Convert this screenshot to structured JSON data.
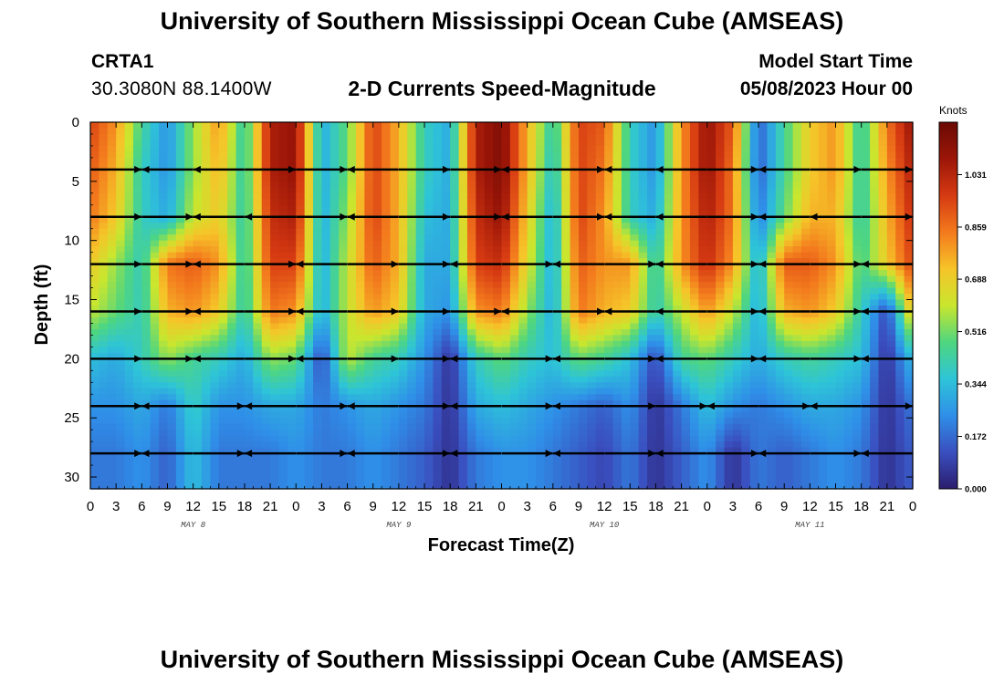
{
  "header": {
    "title": "University of Southern Mississippi Ocean Cube (AMSEAS)",
    "station": "CRTA1",
    "coordinates": "30.3080N  88.1400W",
    "subtitle": "2-D Currents Speed-Magnitude",
    "model_start_label": "Model Start Time",
    "model_start_value": "05/08/2023 Hour 00"
  },
  "footer": {
    "title": "University of Southern Mississippi Ocean Cube (AMSEAS)"
  },
  "chart_data": {
    "type": "heatmap",
    "title": "2-D Currents Speed-Magnitude",
    "xlabel": "Forecast Time(Z)",
    "ylabel": "Depth (ft)",
    "xlim": [
      0,
      96
    ],
    "ylim": [
      31,
      0
    ],
    "x_ticks": [
      0,
      3,
      6,
      9,
      12,
      15,
      18,
      21,
      24,
      27,
      30,
      33,
      36,
      39,
      42,
      45,
      48,
      51,
      54,
      57,
      60,
      63,
      66,
      69,
      72,
      75,
      78,
      81,
      84,
      87,
      90,
      93,
      96
    ],
    "x_tick_labels": [
      "0",
      "3",
      "6",
      "9",
      "12",
      "15",
      "18",
      "21",
      "0",
      "3",
      "6",
      "9",
      "12",
      "15",
      "18",
      "21",
      "0",
      "3",
      "6",
      "9",
      "12",
      "15",
      "18",
      "21",
      "0",
      "3",
      "6",
      "9",
      "12",
      "15",
      "18",
      "21",
      "0"
    ],
    "day_labels": [
      {
        "text": "MAY 8",
        "hour": 12
      },
      {
        "text": "MAY 9",
        "hour": 36
      },
      {
        "text": "MAY 10",
        "hour": 60
      },
      {
        "text": "MAY 11",
        "hour": 84
      }
    ],
    "y_ticks": [
      0,
      5,
      10,
      15,
      20,
      25,
      30
    ],
    "colorbar": {
      "unit": "Knots",
      "range": [
        0,
        1.203
      ],
      "tick_labels": [
        "0.000",
        "0.172",
        "0.344",
        "0.516",
        "0.688",
        "0.859",
        "1.031"
      ],
      "tick_values": [
        0,
        0.172,
        0.344,
        0.516,
        0.688,
        0.859,
        1.031
      ],
      "colors": [
        "#2b1d6e",
        "#3a4fbf",
        "#2f8fe8",
        "#2ec4d8",
        "#4fd67f",
        "#c9e62e",
        "#f6c429",
        "#f37a1d",
        "#d63a12",
        "#9c1608",
        "#6a0a04"
      ]
    },
    "time_hours": [
      0,
      3,
      6,
      9,
      12,
      15,
      18,
      21,
      24,
      27,
      30,
      33,
      36,
      39,
      42,
      45,
      48,
      51,
      54,
      57,
      60,
      63,
      66,
      69,
      72,
      75,
      78,
      81,
      84,
      87,
      90,
      93,
      96
    ],
    "depths_ft": [
      0,
      4,
      8,
      12,
      16,
      20,
      24,
      28,
      31
    ],
    "speed_knots": [
      [
        0.95,
        0.8,
        0.45,
        0.25,
        0.55,
        0.8,
        0.4,
        1.05,
        1.1,
        0.3,
        0.5,
        0.95,
        0.75,
        0.4,
        0.3,
        1.05,
        1.15,
        0.75,
        0.4,
        0.95,
        0.9,
        0.4,
        0.25,
        0.8,
        1.1,
        0.9,
        0.15,
        0.45,
        0.7,
        0.8,
        0.4,
        0.85,
        1.1
      ],
      [
        0.9,
        0.75,
        0.4,
        0.25,
        0.55,
        0.75,
        0.4,
        1.05,
        1.1,
        0.3,
        0.5,
        0.95,
        0.75,
        0.4,
        0.3,
        1.05,
        1.15,
        0.75,
        0.35,
        0.95,
        0.85,
        0.4,
        0.25,
        0.8,
        1.1,
        0.85,
        0.15,
        0.45,
        0.7,
        0.8,
        0.4,
        0.8,
        1.05
      ],
      [
        0.85,
        0.7,
        0.4,
        0.3,
        0.6,
        0.7,
        0.4,
        1.0,
        1.05,
        0.3,
        0.55,
        0.95,
        0.75,
        0.35,
        0.3,
        1.0,
        1.1,
        0.7,
        0.3,
        0.95,
        0.8,
        0.4,
        0.3,
        0.8,
        1.05,
        0.85,
        0.2,
        0.5,
        0.75,
        0.75,
        0.4,
        0.75,
        1.0
      ],
      [
        0.7,
        0.55,
        0.4,
        0.85,
        0.9,
        0.8,
        0.4,
        0.95,
        0.95,
        0.3,
        0.6,
        0.9,
        0.75,
        0.3,
        0.3,
        0.95,
        1.0,
        0.65,
        0.3,
        0.9,
        0.8,
        0.8,
        0.4,
        0.8,
        1.0,
        0.8,
        0.3,
        0.9,
        0.9,
        0.8,
        0.45,
        0.7,
        0.95
      ],
      [
        0.6,
        0.5,
        0.4,
        0.75,
        0.8,
        0.7,
        0.4,
        0.85,
        0.8,
        0.3,
        0.6,
        0.8,
        0.7,
        0.3,
        0.25,
        0.8,
        0.85,
        0.55,
        0.3,
        0.85,
        0.75,
        0.7,
        0.4,
        0.6,
        0.8,
        0.6,
        0.3,
        0.75,
        0.8,
        0.7,
        0.4,
        0.1,
        0.75
      ],
      [
        0.35,
        0.3,
        0.4,
        0.55,
        0.45,
        0.4,
        0.3,
        0.55,
        0.5,
        0.1,
        0.6,
        0.45,
        0.4,
        0.25,
        0.05,
        0.4,
        0.5,
        0.4,
        0.35,
        0.5,
        0.45,
        0.35,
        0.1,
        0.45,
        0.5,
        0.4,
        0.3,
        0.4,
        0.45,
        0.4,
        0.35,
        0.05,
        0.35
      ],
      [
        0.25,
        0.25,
        0.3,
        0.2,
        0.4,
        0.25,
        0.25,
        0.3,
        0.3,
        0.2,
        0.25,
        0.3,
        0.25,
        0.2,
        0.05,
        0.3,
        0.35,
        0.3,
        0.25,
        0.2,
        0.15,
        0.25,
        0.05,
        0.2,
        0.35,
        0.25,
        0.2,
        0.25,
        0.3,
        0.3,
        0.25,
        0.05,
        0.2
      ],
      [
        0.2,
        0.2,
        0.25,
        0.15,
        0.35,
        0.2,
        0.2,
        0.2,
        0.25,
        0.2,
        0.2,
        0.25,
        0.2,
        0.15,
        0.05,
        0.2,
        0.25,
        0.25,
        0.2,
        0.15,
        0.1,
        0.2,
        0.05,
        0.15,
        0.25,
        0.05,
        0.2,
        0.15,
        0.2,
        0.25,
        0.2,
        0.05,
        0.15
      ],
      [
        0.2,
        0.2,
        0.25,
        0.15,
        0.35,
        0.2,
        0.2,
        0.2,
        0.25,
        0.2,
        0.2,
        0.25,
        0.2,
        0.15,
        0.05,
        0.2,
        0.25,
        0.25,
        0.2,
        0.15,
        0.1,
        0.2,
        0.05,
        0.15,
        0.25,
        0.05,
        0.2,
        0.15,
        0.2,
        0.25,
        0.2,
        0.05,
        0.15
      ]
    ],
    "vectors": {
      "depths_ft": [
        4,
        8,
        12,
        16,
        20,
        24,
        28
      ],
      "hours": [
        3,
        9,
        15,
        21,
        27,
        33,
        39,
        45,
        51,
        57,
        63,
        69,
        75,
        81,
        87,
        93
      ],
      "direction_sign": [
        [
          1,
          -1,
          -1,
          1,
          1,
          -1,
          1,
          1,
          -1,
          1,
          -1,
          -1,
          1,
          -1,
          1,
          1
        ],
        [
          1,
          1,
          -1,
          -1,
          1,
          -1,
          1,
          1,
          -1,
          1,
          -1,
          -1,
          1,
          -1,
          -1,
          1
        ],
        [
          1,
          1,
          -1,
          1,
          -1,
          1,
          1,
          -1,
          1,
          -1,
          1,
          -1,
          1,
          -1,
          1,
          -1
        ],
        [
          1,
          1,
          -1,
          1,
          -1,
          1,
          1,
          1,
          -1,
          1,
          -1,
          -1,
          1,
          -1,
          1,
          -1
        ],
        [
          1,
          1,
          -1,
          1,
          -1,
          1,
          1,
          -1,
          1,
          -1,
          1,
          -1,
          1,
          -1,
          1,
          -1
        ],
        [
          1,
          -1,
          1,
          -1,
          1,
          -1,
          1,
          -1,
          1,
          -1,
          1,
          1,
          -1,
          1,
          -1,
          1
        ],
        [
          1,
          -1,
          1,
          -1,
          1,
          -1,
          1,
          -1,
          1,
          -1,
          1,
          -1,
          1,
          -1,
          1,
          -1
        ]
      ]
    }
  }
}
